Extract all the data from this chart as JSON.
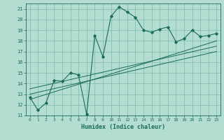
{
  "title": "",
  "xlabel": "Humidex (Indice chaleur)",
  "ylabel": "",
  "bg_color": "#b3ddd1",
  "grid_color": "#7ab8aa",
  "line_color": "#1a6b5a",
  "xlim": [
    -0.5,
    23.5
  ],
  "ylim": [
    11,
    21.5
  ],
  "yticks": [
    11,
    12,
    13,
    14,
    15,
    16,
    17,
    18,
    19,
    20,
    21
  ],
  "xticks": [
    0,
    1,
    2,
    3,
    4,
    5,
    6,
    7,
    8,
    9,
    10,
    11,
    12,
    13,
    14,
    15,
    16,
    17,
    18,
    19,
    20,
    21,
    22,
    23
  ],
  "main_series": [
    [
      0,
      12.7
    ],
    [
      1,
      11.5
    ],
    [
      2,
      12.2
    ],
    [
      3,
      14.3
    ],
    [
      4,
      14.2
    ],
    [
      5,
      15.0
    ],
    [
      6,
      14.8
    ],
    [
      7,
      11.1
    ],
    [
      8,
      18.5
    ],
    [
      9,
      16.5
    ],
    [
      10,
      20.3
    ],
    [
      11,
      21.2
    ],
    [
      12,
      20.7
    ],
    [
      13,
      20.2
    ],
    [
      14,
      19.0
    ],
    [
      15,
      18.8
    ],
    [
      16,
      19.1
    ],
    [
      17,
      19.3
    ],
    [
      18,
      17.9
    ],
    [
      19,
      18.2
    ],
    [
      20,
      19.0
    ],
    [
      21,
      18.4
    ],
    [
      22,
      18.5
    ],
    [
      23,
      18.7
    ]
  ],
  "trend_line1": [
    [
      0,
      12.5
    ],
    [
      23,
      18.0
    ]
  ],
  "trend_line2": [
    [
      0,
      13.0
    ],
    [
      23,
      17.0
    ]
  ],
  "trend_line3": [
    [
      0,
      13.5
    ],
    [
      23,
      17.5
    ]
  ]
}
